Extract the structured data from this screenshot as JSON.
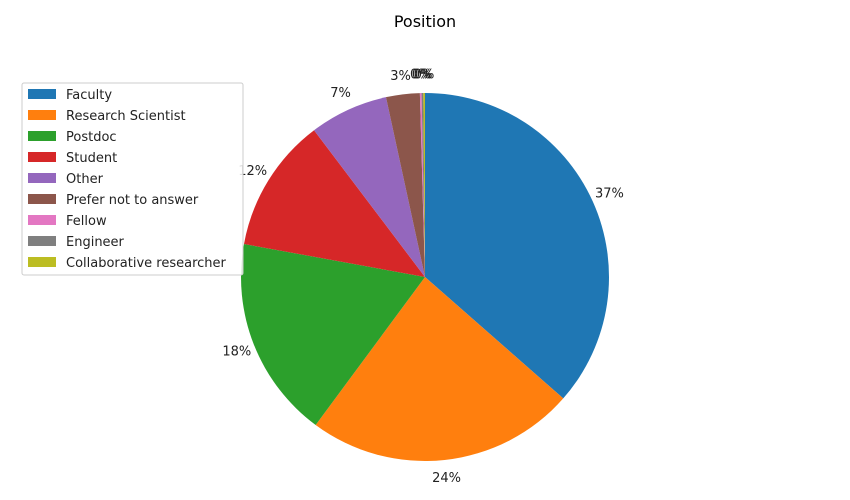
{
  "chart_data": {
    "type": "pie",
    "title": "Position",
    "start_angle_deg": 90,
    "direction": "clockwise",
    "legend_position": "upper-left",
    "slices": [
      {
        "label": "Faculty",
        "value": 37,
        "pct_label": "37%",
        "color": "#1f77b4"
      },
      {
        "label": "Research Scientist",
        "value": 24,
        "pct_label": "24%",
        "color": "#ff7f0e"
      },
      {
        "label": "Postdoc",
        "value": 18,
        "pct_label": "18%",
        "color": "#2ca02c"
      },
      {
        "label": "Student",
        "value": 12,
        "pct_label": "12%",
        "color": "#d62728"
      },
      {
        "label": "Other",
        "value": 7,
        "pct_label": "7%",
        "color": "#9467bd"
      },
      {
        "label": "Prefer not to answer",
        "value": 3,
        "pct_label": "3%",
        "color": "#8c564b"
      },
      {
        "label": "Fellow",
        "value": 0.15,
        "pct_label": "0%",
        "color": "#e377c2"
      },
      {
        "label": "Engineer",
        "value": 0.15,
        "pct_label": "0%",
        "color": "#7f7f7f"
      },
      {
        "label": "Collaborative researcher",
        "value": 0.15,
        "pct_label": "0%",
        "color": "#bcbd22"
      }
    ]
  }
}
